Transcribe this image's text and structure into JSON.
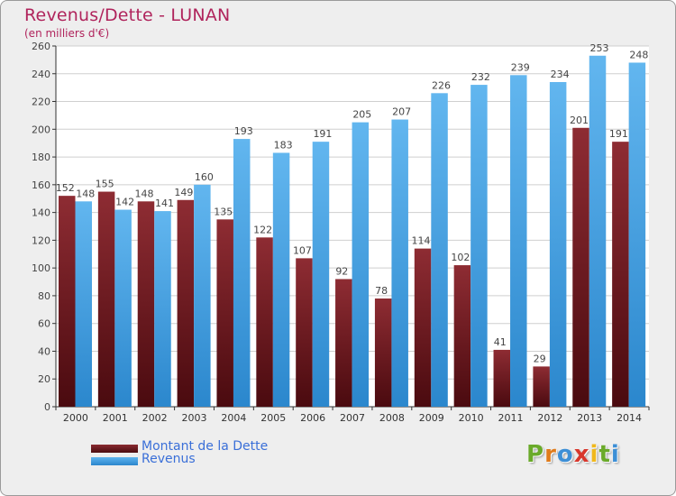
{
  "title": "Revenus/Dette - LUNAN",
  "subtitle": "(en milliers d'€)",
  "legend": [
    {
      "label": "Montant de la Dette",
      "color": "#7a1a1f"
    },
    {
      "label": "Revenus",
      "color": "#4aa3e6"
    }
  ],
  "logo": {
    "letters": [
      "P",
      "r",
      "o",
      "x",
      "i",
      "t",
      "i"
    ],
    "colors": [
      "#6aaa2a",
      "#e07b1a",
      "#3d8fd6",
      "#d8372c",
      "#f0b81c",
      "#6aaa2a",
      "#3d8fd6"
    ]
  },
  "chart_data": {
    "type": "bar",
    "categories": [
      "2000",
      "2001",
      "2002",
      "2003",
      "2004",
      "2005",
      "2006",
      "2007",
      "2008",
      "2009",
      "2010",
      "2011",
      "2012",
      "2013",
      "2014"
    ],
    "series": [
      {
        "name": "Montant de la Dette",
        "color": "#7a1a1f",
        "values": [
          152,
          155,
          148,
          149,
          135,
          122,
          107,
          92,
          78,
          114,
          102,
          41,
          29,
          201,
          191
        ],
        "labels": [
          "152",
          "155",
          "148",
          "149",
          "135",
          "122",
          "107",
          "92",
          "78",
          "114",
          "102",
          "41",
          "29",
          "201",
          "191"
        ]
      },
      {
        "name": "Revenus",
        "color": "#4aa3e6",
        "values": [
          148,
          142,
          141,
          160,
          193,
          183,
          191,
          205,
          207,
          226,
          232,
          239,
          234,
          253,
          248
        ],
        "labels": [
          "148",
          "142",
          "141",
          "160",
          "193",
          "183",
          "191",
          "205",
          "207",
          "226",
          "232",
          "239",
          "234",
          "253",
          "248"
        ]
      }
    ],
    "yticks": [
      "0",
      "20",
      "40",
      "60",
      "80",
      "100",
      "120",
      "140",
      "160",
      "180",
      "200",
      "220",
      "240",
      "260"
    ],
    "ylim": [
      0,
      260
    ],
    "grid": true
  }
}
